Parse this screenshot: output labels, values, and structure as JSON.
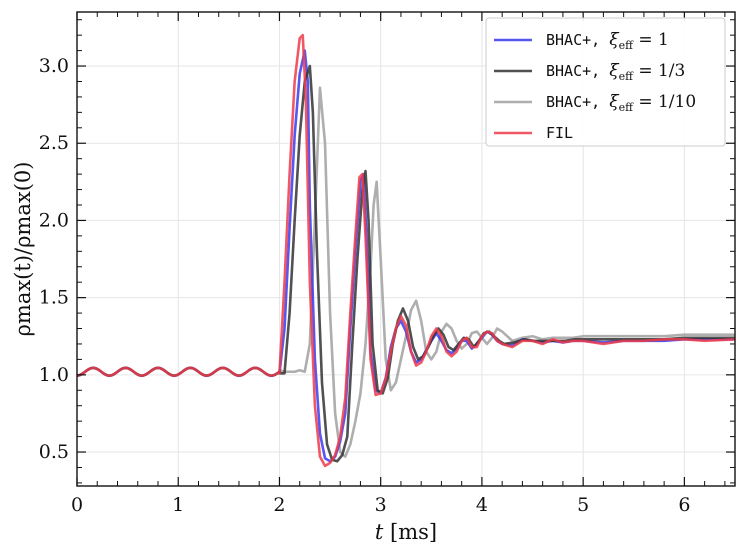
{
  "chart_data": {
    "type": "line",
    "xlabel": "t [ms]",
    "ylabel": "ρmax(t)/ρmax(0)",
    "xlim": [
      0,
      6.5
    ],
    "ylim": [
      0.28,
      3.35
    ],
    "x_ticks": [
      "0",
      "1",
      "2",
      "3",
      "4",
      "5",
      "6"
    ],
    "x_tick_values": [
      0,
      1,
      2,
      3,
      4,
      5,
      6
    ],
    "y_ticks": [
      "0.5",
      "1.0",
      "1.5",
      "2.0",
      "2.5",
      "3.0"
    ],
    "y_tick_values": [
      0.5,
      1.0,
      1.5,
      2.0,
      2.5,
      3.0
    ],
    "grid": true,
    "legend_position": "top-right",
    "series": [
      {
        "name": "BHAC+, ξeff = 1",
        "legend_prefix": "BHAC+, ",
        "legend_var": "ξ",
        "legend_sub": "eff",
        "legend_suffix": " = 1",
        "color": "#3a3aee",
        "x": [
          2.0,
          2.05,
          2.1,
          2.15,
          2.2,
          2.25,
          2.28,
          2.3,
          2.35,
          2.4,
          2.45,
          2.5,
          2.55,
          2.6,
          2.65,
          2.7,
          2.75,
          2.8,
          2.83,
          2.86,
          2.9,
          2.95,
          3.0,
          3.05,
          3.1,
          3.15,
          3.2,
          3.25,
          3.3,
          3.35,
          3.4,
          3.45,
          3.5,
          3.55,
          3.6,
          3.65,
          3.7,
          3.75,
          3.8,
          3.85,
          3.9,
          3.95,
          4.0,
          4.05,
          4.1,
          4.15,
          4.2,
          4.3,
          4.4,
          4.5,
          4.6,
          4.7,
          4.8,
          4.9,
          5.0,
          5.2,
          5.4,
          5.6,
          5.8,
          6.0,
          6.2,
          6.5
        ],
        "y": [
          1.01,
          1.3,
          1.95,
          2.55,
          2.95,
          3.1,
          2.9,
          2.1,
          1.1,
          0.62,
          0.46,
          0.44,
          0.47,
          0.57,
          0.75,
          1.3,
          1.8,
          2.25,
          2.3,
          1.9,
          1.15,
          0.9,
          0.88,
          0.98,
          1.18,
          1.3,
          1.35,
          1.28,
          1.15,
          1.08,
          1.1,
          1.16,
          1.22,
          1.27,
          1.22,
          1.16,
          1.14,
          1.17,
          1.22,
          1.22,
          1.17,
          1.2,
          1.24,
          1.28,
          1.26,
          1.22,
          1.2,
          1.19,
          1.23,
          1.22,
          1.21,
          1.22,
          1.21,
          1.22,
          1.22,
          1.21,
          1.22,
          1.22,
          1.22,
          1.23,
          1.23,
          1.23
        ]
      },
      {
        "name": "BHAC+, ξeff = 1/3",
        "legend_prefix": "BHAC+, ",
        "legend_var": "ξ",
        "legend_sub": "eff",
        "legend_suffix": " = 1/3",
        "color": "#333333",
        "x": [
          2.0,
          2.05,
          2.1,
          2.15,
          2.2,
          2.25,
          2.3,
          2.33,
          2.37,
          2.42,
          2.47,
          2.52,
          2.57,
          2.62,
          2.67,
          2.72,
          2.77,
          2.82,
          2.85,
          2.88,
          2.92,
          2.97,
          3.02,
          3.07,
          3.12,
          3.17,
          3.22,
          3.27,
          3.32,
          3.37,
          3.42,
          3.47,
          3.52,
          3.57,
          3.62,
          3.67,
          3.72,
          3.77,
          3.82,
          3.87,
          3.92,
          3.97,
          4.02,
          4.07,
          4.12,
          4.17,
          4.22,
          4.32,
          4.42,
          4.52,
          4.62,
          4.72,
          4.82,
          4.92,
          5.0,
          5.2,
          5.4,
          5.6,
          5.8,
          6.0,
          6.2,
          6.5
        ],
        "y": [
          1.01,
          1.01,
          1.4,
          2.0,
          2.55,
          2.9,
          3.0,
          2.7,
          1.8,
          0.95,
          0.55,
          0.45,
          0.44,
          0.48,
          0.6,
          1.2,
          1.75,
          2.2,
          2.32,
          2.0,
          1.2,
          0.9,
          0.88,
          0.98,
          1.2,
          1.35,
          1.43,
          1.35,
          1.18,
          1.1,
          1.12,
          1.18,
          1.25,
          1.3,
          1.26,
          1.18,
          1.16,
          1.2,
          1.24,
          1.23,
          1.18,
          1.22,
          1.27,
          1.28,
          1.25,
          1.22,
          1.2,
          1.21,
          1.23,
          1.22,
          1.22,
          1.22,
          1.22,
          1.23,
          1.23,
          1.23,
          1.23,
          1.23,
          1.23,
          1.24,
          1.24,
          1.24
        ]
      },
      {
        "name": "BHAC+, ξeff = 1/10",
        "legend_prefix": "BHAC+, ",
        "legend_var": "ξ",
        "legend_sub": "eff",
        "legend_suffix": " = 1/10",
        "color": "#a0a0a0",
        "x": [
          2.0,
          2.05,
          2.1,
          2.15,
          2.2,
          2.25,
          2.3,
          2.35,
          2.4,
          2.45,
          2.5,
          2.55,
          2.6,
          2.65,
          2.7,
          2.75,
          2.8,
          2.85,
          2.9,
          2.93,
          2.96,
          3.0,
          3.05,
          3.1,
          3.15,
          3.2,
          3.25,
          3.3,
          3.35,
          3.4,
          3.45,
          3.5,
          3.55,
          3.6,
          3.65,
          3.7,
          3.75,
          3.8,
          3.85,
          3.9,
          3.95,
          4.0,
          4.05,
          4.1,
          4.15,
          4.2,
          4.3,
          4.4,
          4.5,
          4.6,
          4.7,
          4.8,
          4.9,
          5.0,
          5.2,
          5.4,
          5.6,
          5.8,
          6.0,
          6.2,
          6.5
        ],
        "y": [
          1.03,
          1.02,
          1.02,
          1.02,
          1.03,
          1.02,
          1.2,
          2.0,
          2.86,
          2.5,
          1.4,
          0.75,
          0.5,
          0.47,
          0.55,
          0.7,
          0.88,
          1.2,
          1.7,
          2.1,
          2.25,
          1.75,
          1.1,
          0.9,
          0.95,
          1.1,
          1.25,
          1.42,
          1.48,
          1.35,
          1.15,
          1.1,
          1.15,
          1.28,
          1.33,
          1.3,
          1.22,
          1.17,
          1.2,
          1.27,
          1.28,
          1.24,
          1.2,
          1.24,
          1.3,
          1.28,
          1.22,
          1.24,
          1.25,
          1.23,
          1.24,
          1.24,
          1.24,
          1.25,
          1.25,
          1.25,
          1.25,
          1.25,
          1.26,
          1.26,
          1.26
        ]
      },
      {
        "name": "FIL",
        "legend_prefix": "FIL",
        "legend_var": "",
        "legend_sub": "",
        "legend_suffix": "",
        "color": "#ee3b4a",
        "x": [
          2.0,
          2.05,
          2.1,
          2.15,
          2.2,
          2.23,
          2.26,
          2.3,
          2.35,
          2.4,
          2.45,
          2.5,
          2.55,
          2.6,
          2.65,
          2.7,
          2.75,
          2.79,
          2.82,
          2.85,
          2.9,
          2.95,
          3.0,
          3.05,
          3.1,
          3.15,
          3.2,
          3.25,
          3.3,
          3.35,
          3.4,
          3.45,
          3.5,
          3.55,
          3.6,
          3.65,
          3.7,
          3.75,
          3.8,
          3.85,
          3.9,
          3.95,
          4.0,
          4.05,
          4.1,
          4.15,
          4.2,
          4.3,
          4.4,
          4.5,
          4.6,
          4.7,
          4.8,
          4.9,
          5.0,
          5.2,
          5.4,
          5.6,
          5.8,
          6.0,
          6.2,
          6.5
        ],
        "y": [
          1.01,
          1.6,
          2.3,
          2.9,
          3.18,
          3.2,
          2.8,
          1.6,
          0.8,
          0.47,
          0.41,
          0.43,
          0.48,
          0.6,
          0.85,
          1.4,
          1.9,
          2.28,
          2.3,
          1.9,
          1.1,
          0.87,
          0.88,
          0.98,
          1.15,
          1.3,
          1.38,
          1.32,
          1.15,
          1.06,
          1.08,
          1.15,
          1.25,
          1.3,
          1.25,
          1.15,
          1.12,
          1.15,
          1.22,
          1.24,
          1.18,
          1.18,
          1.25,
          1.28,
          1.27,
          1.22,
          1.2,
          1.18,
          1.22,
          1.22,
          1.2,
          1.23,
          1.21,
          1.22,
          1.22,
          1.2,
          1.22,
          1.22,
          1.23,
          1.23,
          1.22,
          1.23
        ]
      }
    ],
    "pre_event": {
      "x_range": [
        0,
        2.0
      ],
      "baseline": 1.02,
      "amplitude": 0.025,
      "period_ms": 0.32
    }
  }
}
